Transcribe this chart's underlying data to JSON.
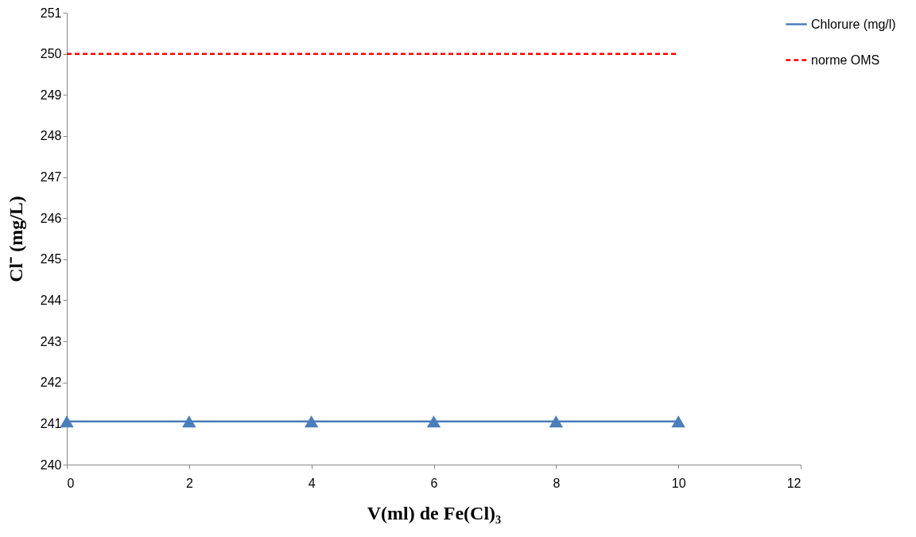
{
  "chart_data": {
    "type": "line",
    "xlabel": "V(ml) de Fe(Cl)₃",
    "ylabel": "Cl⁻ (mg/L)",
    "xlim": [
      0,
      12
    ],
    "xticks": [
      0,
      2,
      4,
      6,
      8,
      10,
      12
    ],
    "ylim": [
      240,
      251
    ],
    "yticks": [
      240,
      241,
      242,
      243,
      244,
      245,
      246,
      247,
      248,
      249,
      250,
      251
    ],
    "grid": false,
    "legend": "right",
    "series": [
      {
        "name": "Chlorure  (mg/l)",
        "color": "#4a7ebb",
        "x": [
          0,
          2,
          4,
          6,
          8,
          10
        ],
        "values": [
          241.05,
          241.05,
          241.05,
          241.05,
          241.05,
          241.05
        ],
        "marker": "triangle",
        "line_style": "solid"
      },
      {
        "name": "norme OMS",
        "color": "#ff0000",
        "x": [
          0,
          10
        ],
        "values": [
          250,
          250
        ],
        "marker": "none",
        "line_style": "dashed"
      }
    ]
  }
}
